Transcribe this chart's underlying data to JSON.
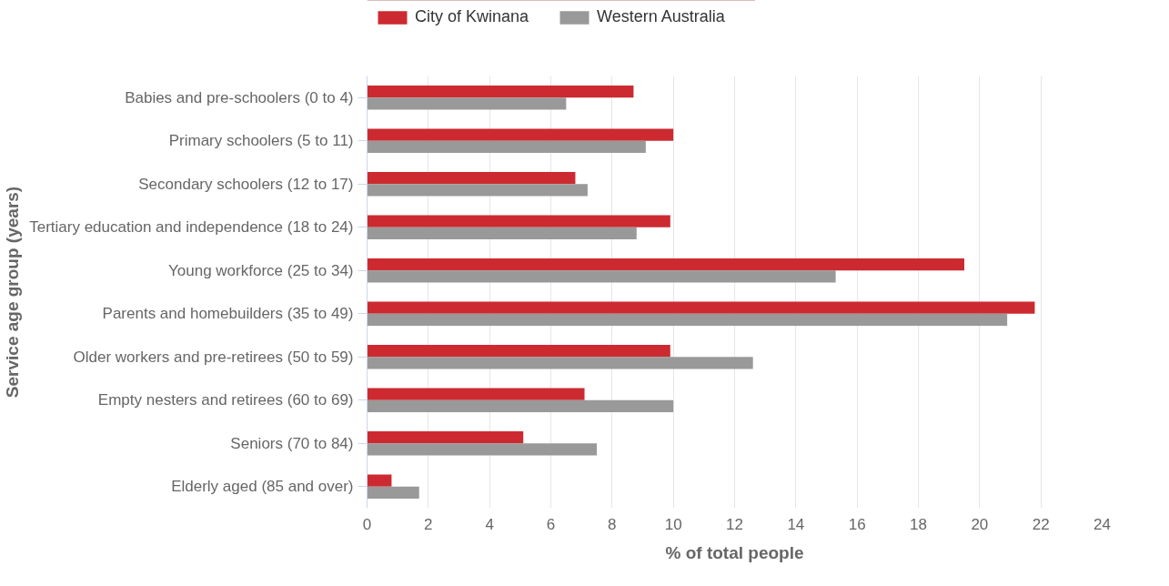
{
  "chart_data": {
    "type": "bar",
    "orientation": "horizontal",
    "xlabel": "% of total people",
    "ylabel": "Service age group (years)",
    "categories": [
      "Babies and pre-schoolers (0 to 4)",
      "Primary schoolers (5 to 11)",
      "Secondary schoolers (12 to 17)",
      "Tertiary education and independence (18 to 24)",
      "Young workforce (25 to 34)",
      "Parents and homebuilders (35 to 49)",
      "Older workers and pre-retirees (50 to 59)",
      "Empty nesters and retirees (60 to 69)",
      "Seniors (70 to 84)",
      "Elderly aged (85 and over)"
    ],
    "series": [
      {
        "name": "City of Kwinana",
        "color": "#cc2a30",
        "values": [
          8.7,
          10.0,
          6.8,
          9.9,
          19.5,
          21.8,
          9.9,
          7.1,
          5.1,
          0.8
        ]
      },
      {
        "name": "Western Australia",
        "color": "#999999",
        "values": [
          6.5,
          9.1,
          7.2,
          8.8,
          15.3,
          20.9,
          12.6,
          10.0,
          7.5,
          1.7
        ]
      }
    ],
    "xlim": [
      0,
      24
    ],
    "xticks": [
      0,
      2,
      4,
      6,
      8,
      10,
      12,
      14,
      16,
      18,
      20,
      22,
      24
    ],
    "grid": "x",
    "legend": "top left"
  }
}
